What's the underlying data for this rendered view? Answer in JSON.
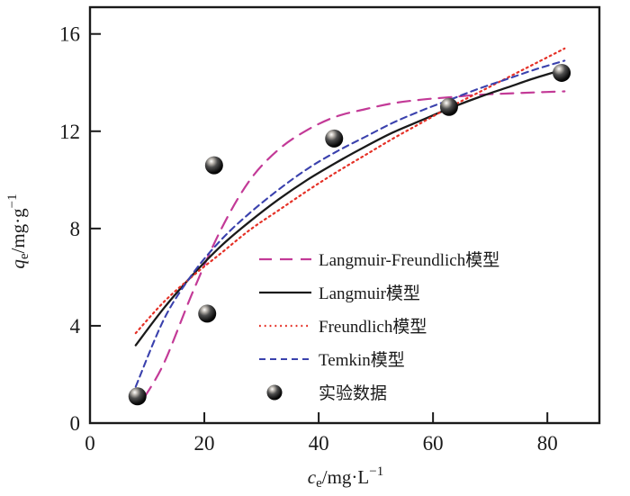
{
  "chart_data": {
    "type": "scatter",
    "title": "",
    "xlabel": "ce/mg·L−1",
    "ylabel": "qe/mg·g−1",
    "x_axis": {
      "variable": "c",
      "subscript": "e",
      "unit": "/mg·L",
      "exponent": "−1",
      "ticks": [
        0,
        20,
        40,
        60,
        80
      ]
    },
    "y_axis": {
      "variable": "q",
      "subscript": "e",
      "unit": "/mg·g",
      "exponent": "−1",
      "ticks": [
        0,
        4,
        8,
        12,
        16
      ]
    },
    "xlim": [
      0,
      89.1
    ],
    "ylim": [
      0,
      17.1
    ],
    "grid": false,
    "legend_position": "inside lower right of plot",
    "frame_color": "#1a1a1a",
    "series": [
      {
        "id": "langmuir-freundlich-model",
        "name": "Langmuir-Freundlich模型",
        "type": "line",
        "color": "#c33a97",
        "dash": "14 9",
        "width": 2.2,
        "points": [
          [
            9.5,
            1.05
          ],
          [
            13,
            2.5
          ],
          [
            18,
            5.4
          ],
          [
            23,
            8.0
          ],
          [
            28,
            10.0
          ],
          [
            33,
            11.25
          ],
          [
            38,
            12.05
          ],
          [
            43,
            12.6
          ],
          [
            48,
            12.9
          ],
          [
            53,
            13.15
          ],
          [
            58,
            13.3
          ],
          [
            63,
            13.4
          ],
          [
            68,
            13.5
          ],
          [
            73,
            13.55
          ],
          [
            78,
            13.6
          ],
          [
            83,
            13.64
          ]
        ]
      },
      {
        "id": "langmuir-model",
        "name": "Langmuir模型",
        "type": "line",
        "color": "#1a1a1a",
        "dash": "",
        "width": 2.3,
        "points": [
          [
            8,
            3.2
          ],
          [
            13,
            4.75
          ],
          [
            18,
            6.1
          ],
          [
            23,
            7.3
          ],
          [
            28,
            8.3
          ],
          [
            33,
            9.2
          ],
          [
            38,
            10.0
          ],
          [
            43,
            10.7
          ],
          [
            48,
            11.35
          ],
          [
            53,
            11.95
          ],
          [
            58,
            12.45
          ],
          [
            63,
            12.95
          ],
          [
            68,
            13.4
          ],
          [
            73,
            13.8
          ],
          [
            78,
            14.2
          ],
          [
            83,
            14.55
          ]
        ]
      },
      {
        "id": "freundlich-model",
        "name": "Freundlich模型",
        "type": "line",
        "color": "#e53127",
        "dash": "1.8 4",
        "width": 2.2,
        "points": [
          [
            8,
            3.7
          ],
          [
            13,
            5.0
          ],
          [
            18,
            6.05
          ],
          [
            23,
            7.0
          ],
          [
            28,
            7.95
          ],
          [
            33,
            8.75
          ],
          [
            38,
            9.55
          ],
          [
            43,
            10.3
          ],
          [
            48,
            11.0
          ],
          [
            53,
            11.7
          ],
          [
            58,
            12.35
          ],
          [
            63,
            13.0
          ],
          [
            68,
            13.6
          ],
          [
            73,
            14.2
          ],
          [
            78,
            14.8
          ],
          [
            83,
            15.4
          ]
        ]
      },
      {
        "id": "temkin-model",
        "name": "Temkin模型",
        "type": "line",
        "color": "#3a41ad",
        "dash": "7 5",
        "width": 2.1,
        "points": [
          [
            8,
            1.5
          ],
          [
            13,
            4.3
          ],
          [
            18,
            6.15
          ],
          [
            23,
            7.55
          ],
          [
            28,
            8.65
          ],
          [
            33,
            9.6
          ],
          [
            38,
            10.45
          ],
          [
            43,
            11.15
          ],
          [
            48,
            11.75
          ],
          [
            53,
            12.35
          ],
          [
            58,
            12.85
          ],
          [
            63,
            13.3
          ],
          [
            68,
            13.75
          ],
          [
            73,
            14.15
          ],
          [
            78,
            14.55
          ],
          [
            83,
            14.9
          ]
        ]
      },
      {
        "id": "experimental-data",
        "name": "实验数据",
        "type": "scatter",
        "marker": "sphere",
        "color": "#000000",
        "points": [
          [
            8.3,
            1.1
          ],
          [
            20.5,
            4.5
          ],
          [
            21.7,
            10.6
          ],
          [
            42.7,
            11.7
          ],
          [
            62.8,
            13.0
          ],
          [
            82.5,
            14.4
          ]
        ]
      }
    ]
  }
}
